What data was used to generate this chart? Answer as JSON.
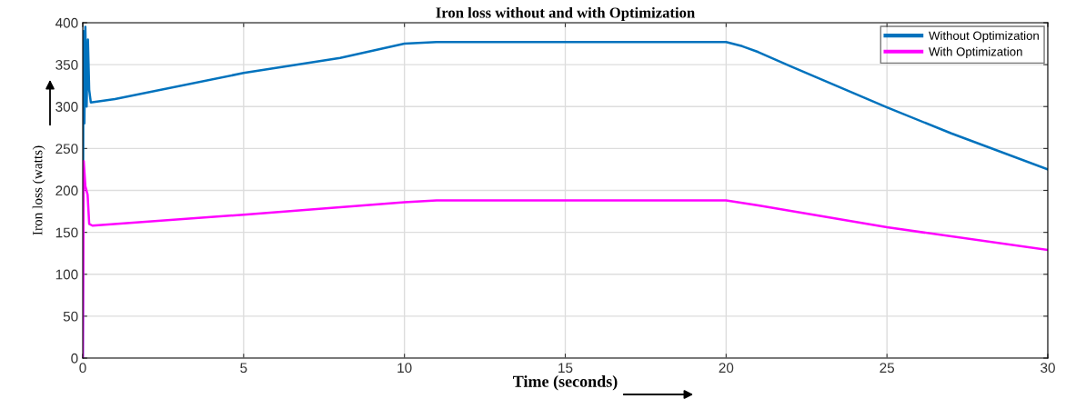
{
  "chart_data": {
    "type": "line",
    "title": "Iron loss without and with Optimization",
    "xlabel": "Time (seconds)",
    "ylabel": "Iron loss (watts)",
    "xlim": [
      0,
      30
    ],
    "xticks": [
      0,
      5,
      10,
      15,
      20,
      25,
      30
    ],
    "ylim": [
      0,
      400
    ],
    "yticks": [
      0,
      50,
      100,
      150,
      200,
      250,
      300,
      350,
      400
    ],
    "grid": true,
    "legend": "top right",
    "line_style": "solid",
    "series": [
      {
        "name": "Without Optimization",
        "color": "#0072bd",
        "x": [
          0,
          0.02,
          0.05,
          0.08,
          0.12,
          0.16,
          0.2,
          0.25,
          1,
          5,
          8,
          10,
          11,
          20,
          20.5,
          21,
          22,
          25,
          27,
          30
        ],
        "values": [
          0,
          390,
          280,
          395,
          300,
          380,
          320,
          305,
          309,
          340,
          358,
          375,
          377,
          377,
          372,
          365,
          348,
          299,
          268,
          225
        ]
      },
      {
        "name": "With Optimization",
        "color": "#ff00ff",
        "x": [
          0,
          0.03,
          0.08,
          0.15,
          0.2,
          0.3,
          5,
          10,
          11,
          20,
          21,
          25,
          30
        ],
        "values": [
          0,
          235,
          205,
          195,
          160,
          158,
          171,
          186,
          188,
          188,
          182,
          156,
          129
        ]
      }
    ]
  }
}
